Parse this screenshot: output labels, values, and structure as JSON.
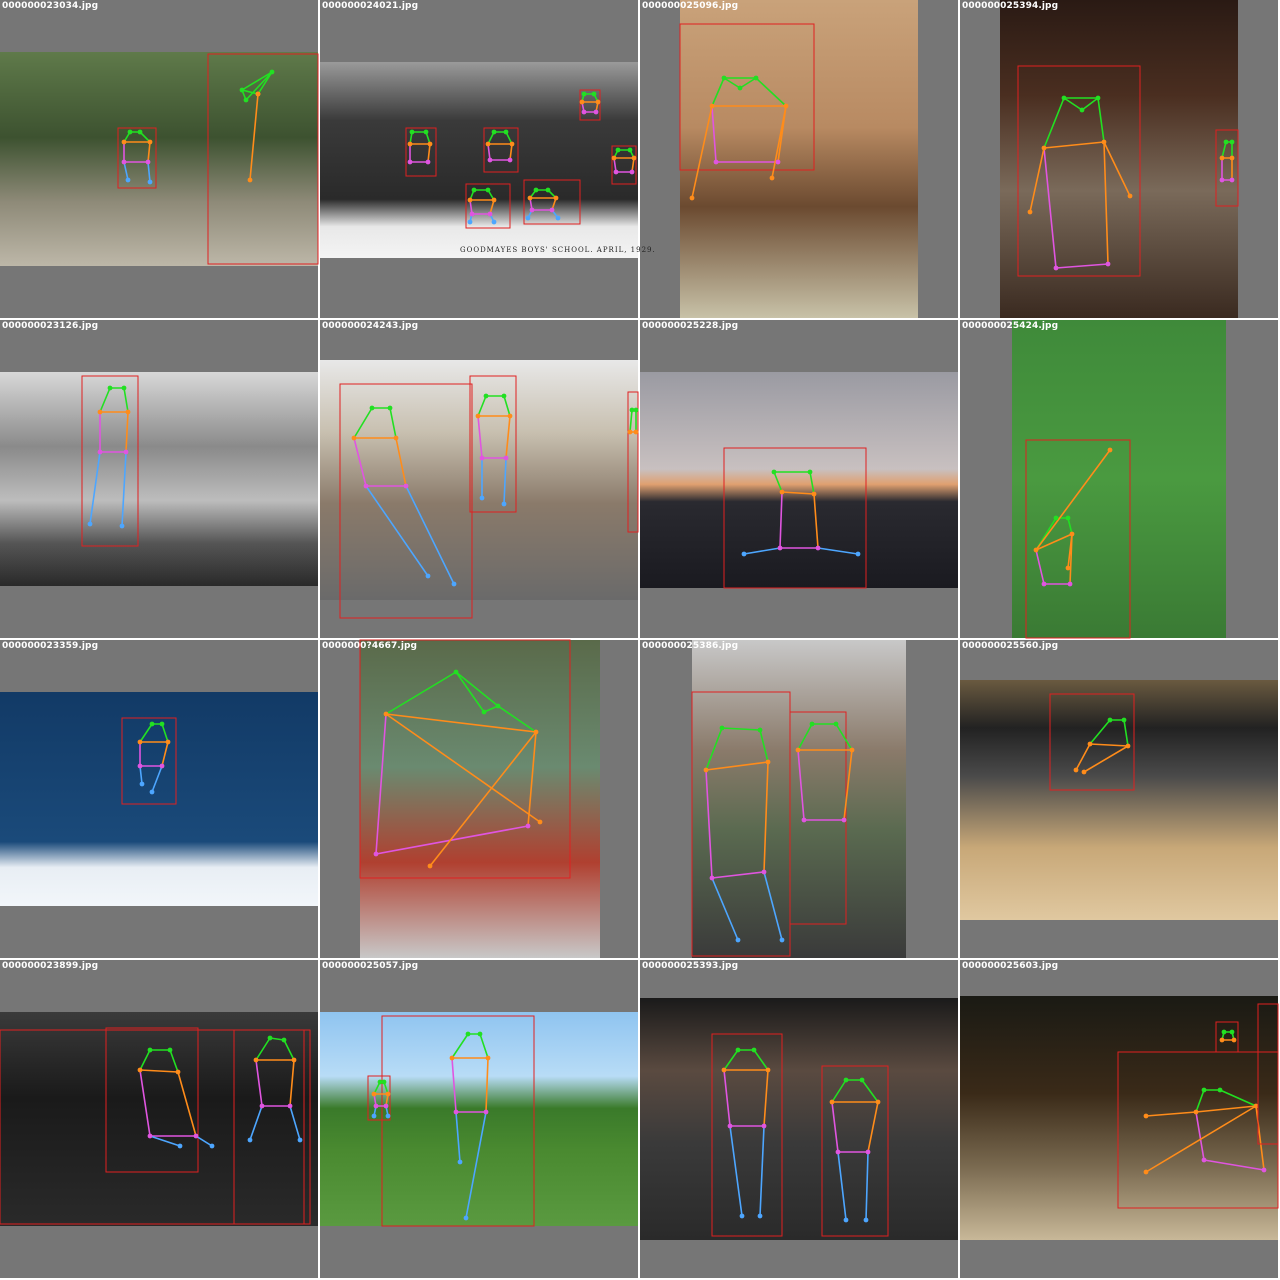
{
  "grid_title": "",
  "cells": [
    {
      "filename": "000000023034.jpg"
    },
    {
      "filename": "000000024021.jpg",
      "caption": "GOODMAYES BOYS' SCHOOL.   APRIL, 1929."
    },
    {
      "filename": "000000025096.jpg"
    },
    {
      "filename": "000000025394.jpg"
    },
    {
      "filename": "000000023126.jpg"
    },
    {
      "filename": "000000024243.jpg"
    },
    {
      "filename": "000000025228.jpg"
    },
    {
      "filename": "000000025424.jpg"
    },
    {
      "filename": "000000023359.jpg"
    },
    {
      "filename": "0000000?4667.jpg"
    },
    {
      "filename": "000000025386.jpg"
    },
    {
      "filename": "000000025560.jpg"
    },
    {
      "filename": "000000023899.jpg"
    },
    {
      "filename": "000000025057.jpg"
    },
    {
      "filename": "000000025393.jpg"
    },
    {
      "filename": "000000025603.jpg"
    }
  ],
  "colors": {
    "padding_gray": "#767676",
    "bbox": "#e02020",
    "head": "#22e022",
    "torso": "#ff8c1a",
    "left_side": "#e055e0",
    "legs": "#4da6ff"
  }
}
